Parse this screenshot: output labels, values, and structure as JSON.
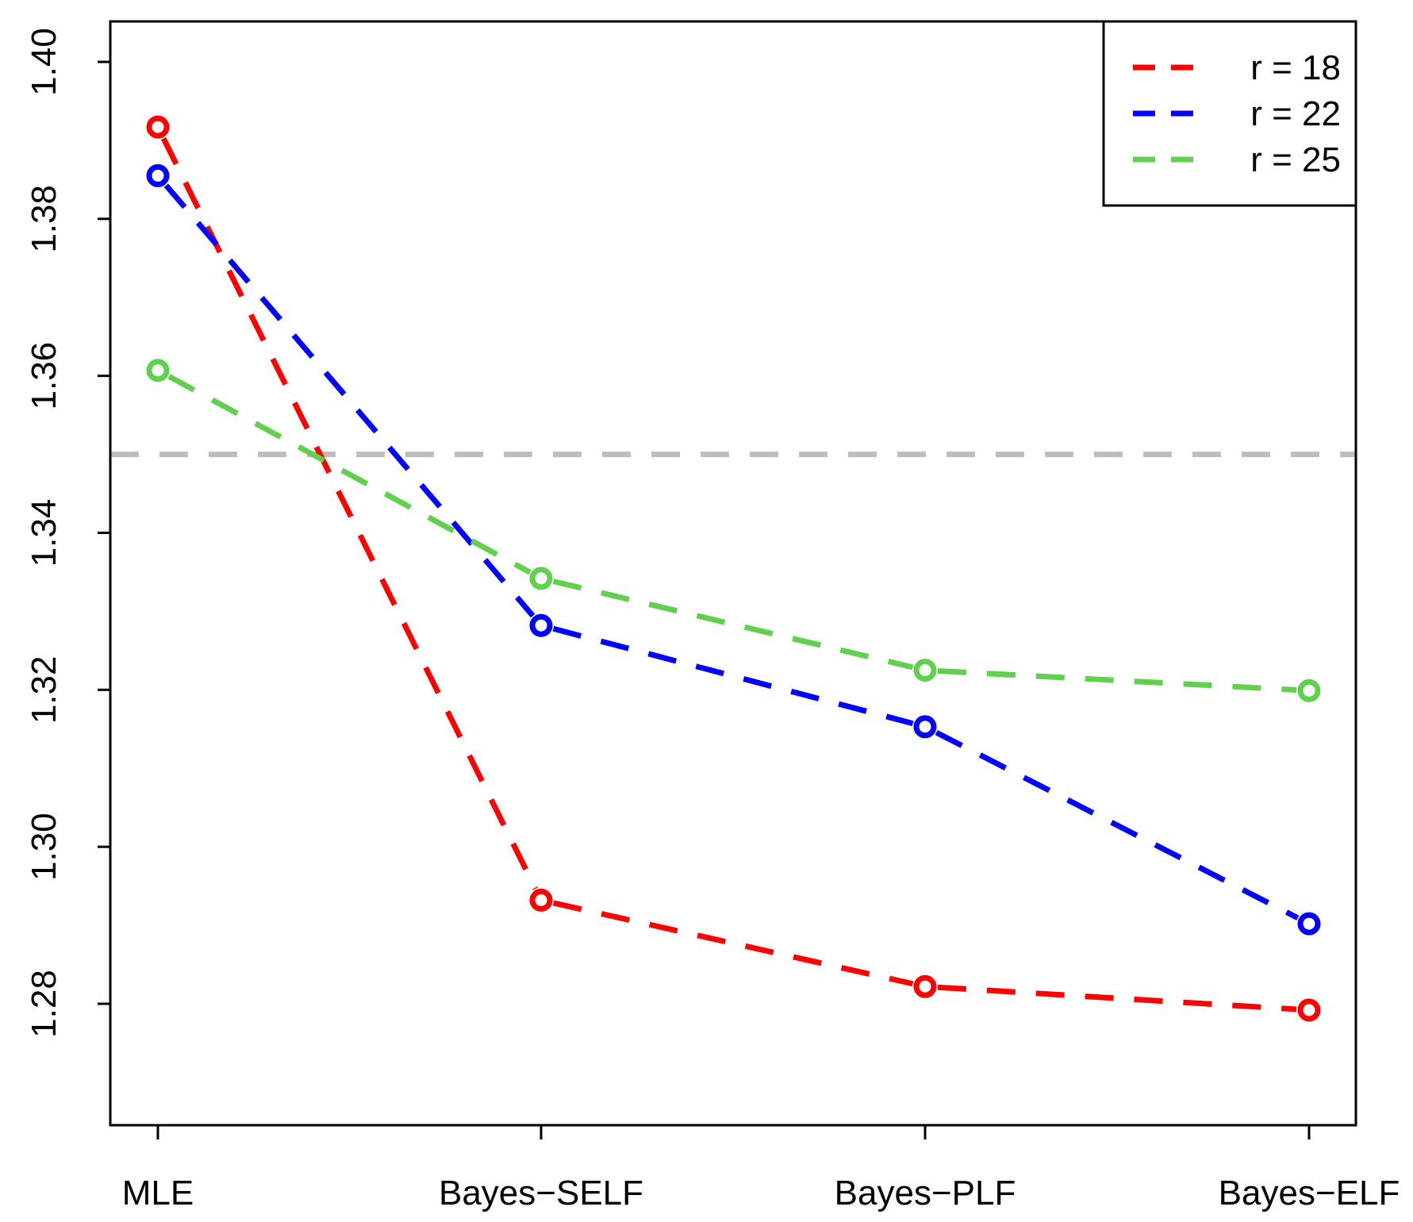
{
  "chart_data": {
    "type": "line",
    "title": "",
    "xlabel": "",
    "ylabel": "",
    "categories": [
      "MLE",
      "Bayes−SELF",
      "Bayes−PLF",
      "Bayes−ELF"
    ],
    "y_ticks": [
      "1.28",
      "1.30",
      "1.32",
      "1.34",
      "1.36",
      "1.38",
      "1.40"
    ],
    "ylim": [
      1.265,
      1.405
    ],
    "reference_line": {
      "value": 1.35,
      "color": "#BEBEBE",
      "style": "dashed"
    },
    "legend_position": "top-right",
    "series": [
      {
        "name": "r = 18",
        "color": "#FF0000",
        "values": [
          1.3917,
          1.2932,
          1.2822,
          1.2792
        ]
      },
      {
        "name": "r = 22",
        "color": "#0000FF",
        "values": [
          1.3855,
          1.3282,
          1.3153,
          1.2902
        ]
      },
      {
        "name": "r = 25",
        "color": "#61D04F",
        "values": [
          1.3607,
          1.3342,
          1.3225,
          1.3199
        ]
      }
    ]
  }
}
